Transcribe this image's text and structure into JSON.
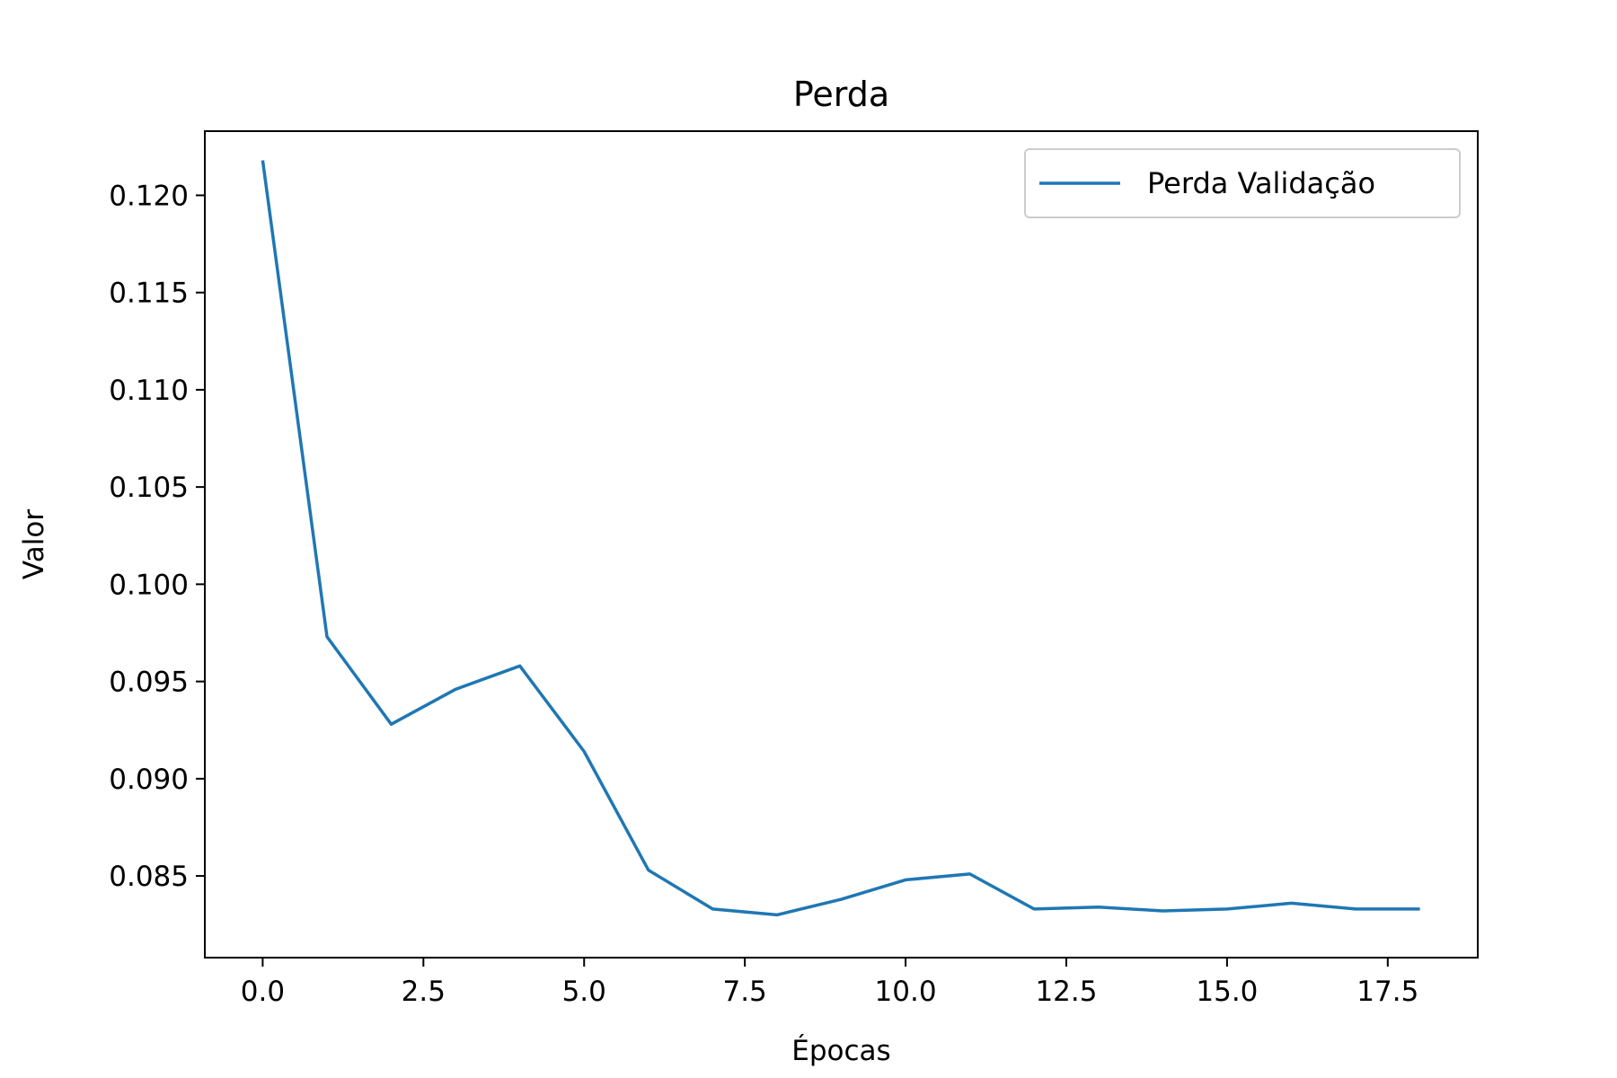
{
  "chart_data": {
    "type": "line",
    "title": "Perda",
    "xlabel": "Épocas",
    "ylabel": "Valor",
    "xlim": [
      -0.9,
      18.9
    ],
    "ylim": [
      0.0808,
      0.1233
    ],
    "xticks": [
      0.0,
      2.5,
      5.0,
      7.5,
      10.0,
      12.5,
      15.0,
      17.5
    ],
    "xtick_labels": [
      "0.0",
      "2.5",
      "5.0",
      "7.5",
      "10.0",
      "12.5",
      "15.0",
      "17.5"
    ],
    "yticks": [
      0.085,
      0.09,
      0.095,
      0.1,
      0.105,
      0.11,
      0.115,
      0.12
    ],
    "ytick_labels": [
      "0.085",
      "0.090",
      "0.095",
      "0.100",
      "0.105",
      "0.110",
      "0.115",
      "0.120"
    ],
    "grid": false,
    "legend_position": "upper right",
    "series": [
      {
        "name": "Perda Validação",
        "color": "#1f77b4",
        "x": [
          0,
          1,
          2,
          3,
          4,
          5,
          6,
          7,
          8,
          9,
          10,
          11,
          12,
          13,
          14,
          15,
          16,
          17,
          18
        ],
        "values": [
          0.1218,
          0.0973,
          0.0928,
          0.0946,
          0.0958,
          0.0914,
          0.0853,
          0.0833,
          0.083,
          0.0838,
          0.0848,
          0.0851,
          0.0833,
          0.0834,
          0.0832,
          0.0833,
          0.0836,
          0.0833,
          0.0833
        ]
      }
    ]
  }
}
